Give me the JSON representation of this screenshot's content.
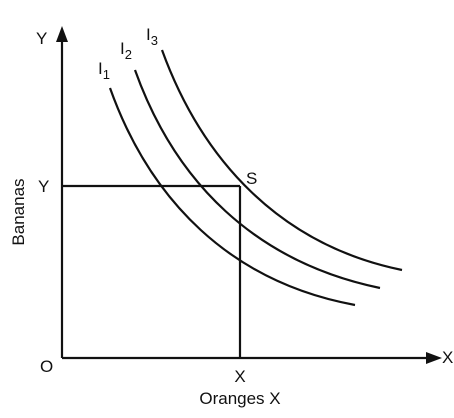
{
  "axes": {
    "y_axis_label": "Y",
    "x_axis_label": "X",
    "origin": "O",
    "y_title": "Bananas",
    "x_title": "Oranges X",
    "y_point": "Y",
    "x_point": "X"
  },
  "point": "S",
  "curves": [
    {
      "label": "I",
      "sub": "1"
    },
    {
      "label": "I",
      "sub": "2"
    },
    {
      "label": "I",
      "sub": "3"
    }
  ]
}
